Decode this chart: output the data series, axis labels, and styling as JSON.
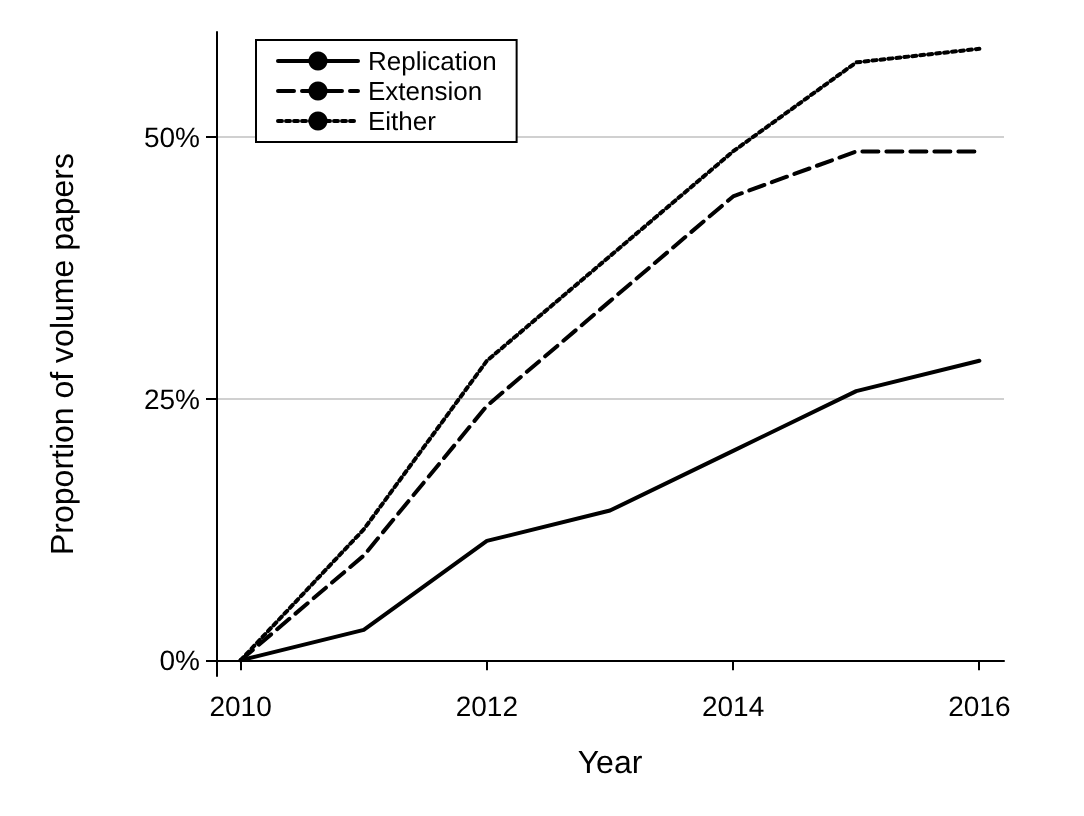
{
  "chart_data": {
    "type": "line",
    "xlabel": "Year",
    "ylabel": "Proportion of volume papers",
    "x": [
      2010,
      2011,
      2012,
      2013,
      2014,
      2015,
      2016
    ],
    "series": [
      {
        "name": "Replication",
        "color": "#000000",
        "line_style": "solid",
        "values": [
          0,
          2.9,
          11.4,
          14.3,
          20,
          25.7,
          28.6
        ]
      },
      {
        "name": "Extension",
        "color": "#000000",
        "line_style": "dashed",
        "values": [
          0,
          10,
          24.3,
          34.3,
          44.3,
          48.6,
          48.6
        ]
      },
      {
        "name": "Either",
        "color": "#000000",
        "line_style": "dotted",
        "values": [
          0,
          12.5,
          28.6,
          38.6,
          48.6,
          57.1,
          58.4
        ]
      }
    ],
    "xlim": [
      2009.8,
      2016.2
    ],
    "xticks": [
      2010,
      2012,
      2014,
      2016
    ],
    "ylim": [
      -1.5,
      60
    ],
    "yticks": [
      {
        "value": 0,
        "label": "0%"
      },
      {
        "value": 25,
        "label": "25%"
      },
      {
        "value": 50,
        "label": "50%"
      }
    ],
    "grid": "y",
    "legend": "top left",
    "marker": "none"
  }
}
